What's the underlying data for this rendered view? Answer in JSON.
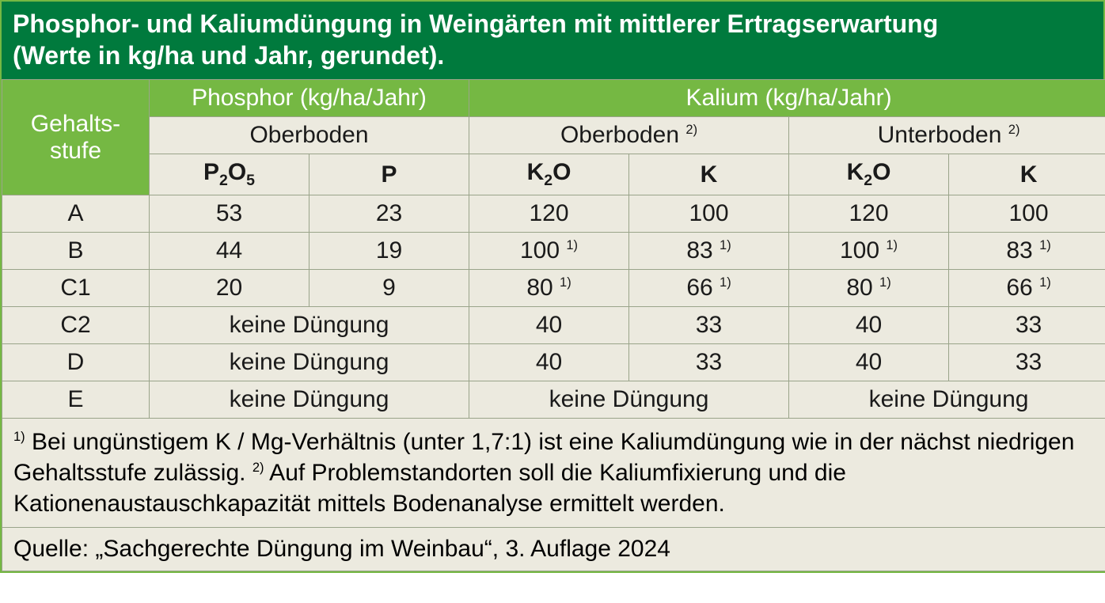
{
  "title_line1": "Phosphor- und Kaliumdüngung in Weingärten mit mittlerer Ertragserwartung",
  "title_line2": "(Werte in kg/ha und Jahr, gerundet).",
  "headers": {
    "gehalts_1": "Gehalts-",
    "gehalts_2": "stufe",
    "phosphor": "Phosphor (kg/ha/Jahr)",
    "kalium": "Kalium (kg/ha/Jahr)",
    "oberboden": "Oberboden",
    "oberboden2": "Oberboden",
    "unterboden2": "Unterboden",
    "sup2": "2)",
    "p2o5_a": "P",
    "p2o5_b": "2",
    "p2o5_c": "O",
    "p2o5_d": "5",
    "p": "P",
    "k2o_a": "K",
    "k2o_b": "2",
    "k2o_c": "O",
    "k": "K"
  },
  "rows": {
    "A": {
      "label": "A",
      "p2o5": "53",
      "p": "23",
      "ob_k2o": "120",
      "ob_k": "100",
      "ub_k2o": "120",
      "ub_k": "100"
    },
    "B": {
      "label": "B",
      "p2o5": "44",
      "p": "19",
      "ob_k2o": "100",
      "ob_k": "83",
      "ub_k2o": "100",
      "ub_k": "83",
      "sup": "1)"
    },
    "C1": {
      "label": "C1",
      "p2o5": "20",
      "p": "9",
      "ob_k2o": "80",
      "ob_k": "66",
      "ub_k2o": "80",
      "ub_k": "66",
      "sup": "1)"
    },
    "C2": {
      "label": "C2",
      "phos": "keine Düngung",
      "ob_k2o": "40",
      "ob_k": "33",
      "ub_k2o": "40",
      "ub_k": "33"
    },
    "D": {
      "label": "D",
      "phos": "keine Düngung",
      "ob_k2o": "40",
      "ob_k": "33",
      "ub_k2o": "40",
      "ub_k": "33"
    },
    "E": {
      "label": "E",
      "phos": "keine Düngung",
      "ob": "keine Düngung",
      "ub": "keine Düngung"
    }
  },
  "footnote_sup1": "1)",
  "footnote_txt1": " Bei ungünstigem K / Mg-Verhältnis (unter 1,7:1) ist eine Kaliumdüngung wie in der nächst niedrigen Gehaltsstufe zulässig. ",
  "footnote_sup2": "2)",
  "footnote_txt2": " Auf Problemstandorten soll die Kaliumfixierung und die Kationenaustauschkapazität mittels Bodenanalyse ermittelt werden.",
  "source": "Quelle: „Sachgerechte Düngung im Weinbau“, 3. Auflage 2024",
  "colors": {
    "title_bg": "#007a3d",
    "head_bg": "#75b843",
    "cell_bg": "#eceadf",
    "border": "#9aa48a",
    "text_dark": "#1a1a1a",
    "text_light": "#ffffff"
  }
}
